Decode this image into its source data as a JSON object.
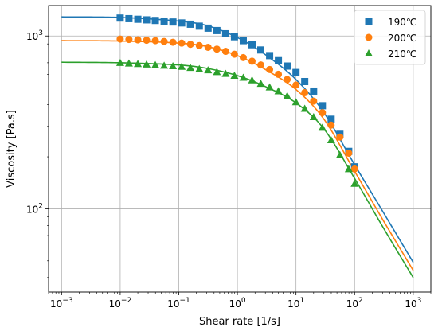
{
  "chart_data": {
    "type": "scatter",
    "title": "",
    "xlabel": "Shear rate [1/s]",
    "ylabel": "Viscosity [Pa.s]",
    "x_scale": "log",
    "y_scale": "log",
    "xlim": [
      0.0006,
      2000
    ],
    "ylim": [
      33,
      1500
    ],
    "grid": true,
    "legend_position": "top-right",
    "x_ticks": [
      {
        "value": 0.001,
        "label": "10⁻³"
      },
      {
        "value": 0.01,
        "label": "10⁻²"
      },
      {
        "value": 0.1,
        "label": "10⁻¹"
      },
      {
        "value": 1,
        "label": "10⁰"
      },
      {
        "value": 10,
        "label": "10¹"
      },
      {
        "value": 100,
        "label": "10²"
      },
      {
        "value": 1000,
        "label": "10³"
      }
    ],
    "y_ticks": [
      {
        "value": 100,
        "label": "10²"
      },
      {
        "value": 1000,
        "label": "10³"
      }
    ],
    "series": [
      {
        "name": "190℃",
        "color": "#1f77b4",
        "marker": "square",
        "x": [
          0.01,
          0.0141,
          0.02,
          0.0282,
          0.0398,
          0.0562,
          0.0794,
          0.112,
          0.158,
          0.224,
          0.316,
          0.447,
          0.631,
          0.891,
          1.26,
          1.78,
          2.51,
          3.55,
          5.01,
          7.08,
          10,
          14.1,
          20,
          28.2,
          39.8,
          56.2,
          79.4,
          100
        ],
        "y": [
          1270,
          1260,
          1250,
          1240,
          1230,
          1220,
          1205,
          1190,
          1170,
          1140,
          1110,
          1075,
          1030,
          990,
          940,
          890,
          830,
          770,
          720,
          670,
          615,
          545,
          480,
          395,
          330,
          270,
          215,
          175
        ],
        "fit": {
          "x": [
            0.001,
            0.01,
            0.1,
            0.3,
            1,
            3,
            10,
            30,
            100,
            300,
            1000
          ],
          "y": [
            1290,
            1280,
            1220,
            1150,
            980,
            780,
            560,
            360,
            180,
            97,
            49
          ]
        }
      },
      {
        "name": "200℃",
        "color": "#ff7f0e",
        "marker": "circle",
        "x": [
          0.01,
          0.0141,
          0.02,
          0.0282,
          0.0398,
          0.0562,
          0.0794,
          0.112,
          0.158,
          0.224,
          0.316,
          0.447,
          0.631,
          0.891,
          1.26,
          1.78,
          2.51,
          3.55,
          5.01,
          7.08,
          10,
          14.1,
          20,
          28.2,
          39.8,
          56.2,
          79.4,
          100
        ],
        "y": [
          960,
          955,
          950,
          945,
          940,
          930,
          920,
          910,
          895,
          880,
          860,
          840,
          815,
          785,
          750,
          715,
          680,
          640,
          600,
          560,
          520,
          470,
          420,
          360,
          305,
          260,
          210,
          170
        ],
        "fit": {
          "x": [
            0.001,
            0.01,
            0.1,
            0.3,
            1,
            3,
            10,
            30,
            100,
            300,
            1000
          ],
          "y": [
            940,
            935,
            910,
            870,
            770,
            640,
            490,
            330,
            165,
            87,
            44
          ]
        }
      },
      {
        "name": "210℃",
        "color": "#2ca02c",
        "marker": "triangle",
        "x": [
          0.01,
          0.0141,
          0.02,
          0.0282,
          0.0398,
          0.0562,
          0.0794,
          0.112,
          0.158,
          0.224,
          0.316,
          0.447,
          0.631,
          0.891,
          1.26,
          1.78,
          2.51,
          3.55,
          5.01,
          7.08,
          10,
          14.1,
          20,
          28.2,
          39.8,
          56.2,
          79.4,
          100
        ],
        "y": [
          700,
          695,
          690,
          685,
          680,
          675,
          670,
          665,
          655,
          645,
          635,
          620,
          605,
          590,
          575,
          555,
          530,
          505,
          480,
          450,
          415,
          380,
          340,
          295,
          250,
          205,
          170,
          140
        ],
        "fit": {
          "x": [
            0.001,
            0.01,
            0.1,
            0.3,
            1,
            3,
            10,
            30,
            100,
            300,
            1000
          ],
          "y": [
            705,
            700,
            680,
            650,
            590,
            510,
            410,
            290,
            150,
            79,
            40
          ]
        }
      }
    ]
  }
}
